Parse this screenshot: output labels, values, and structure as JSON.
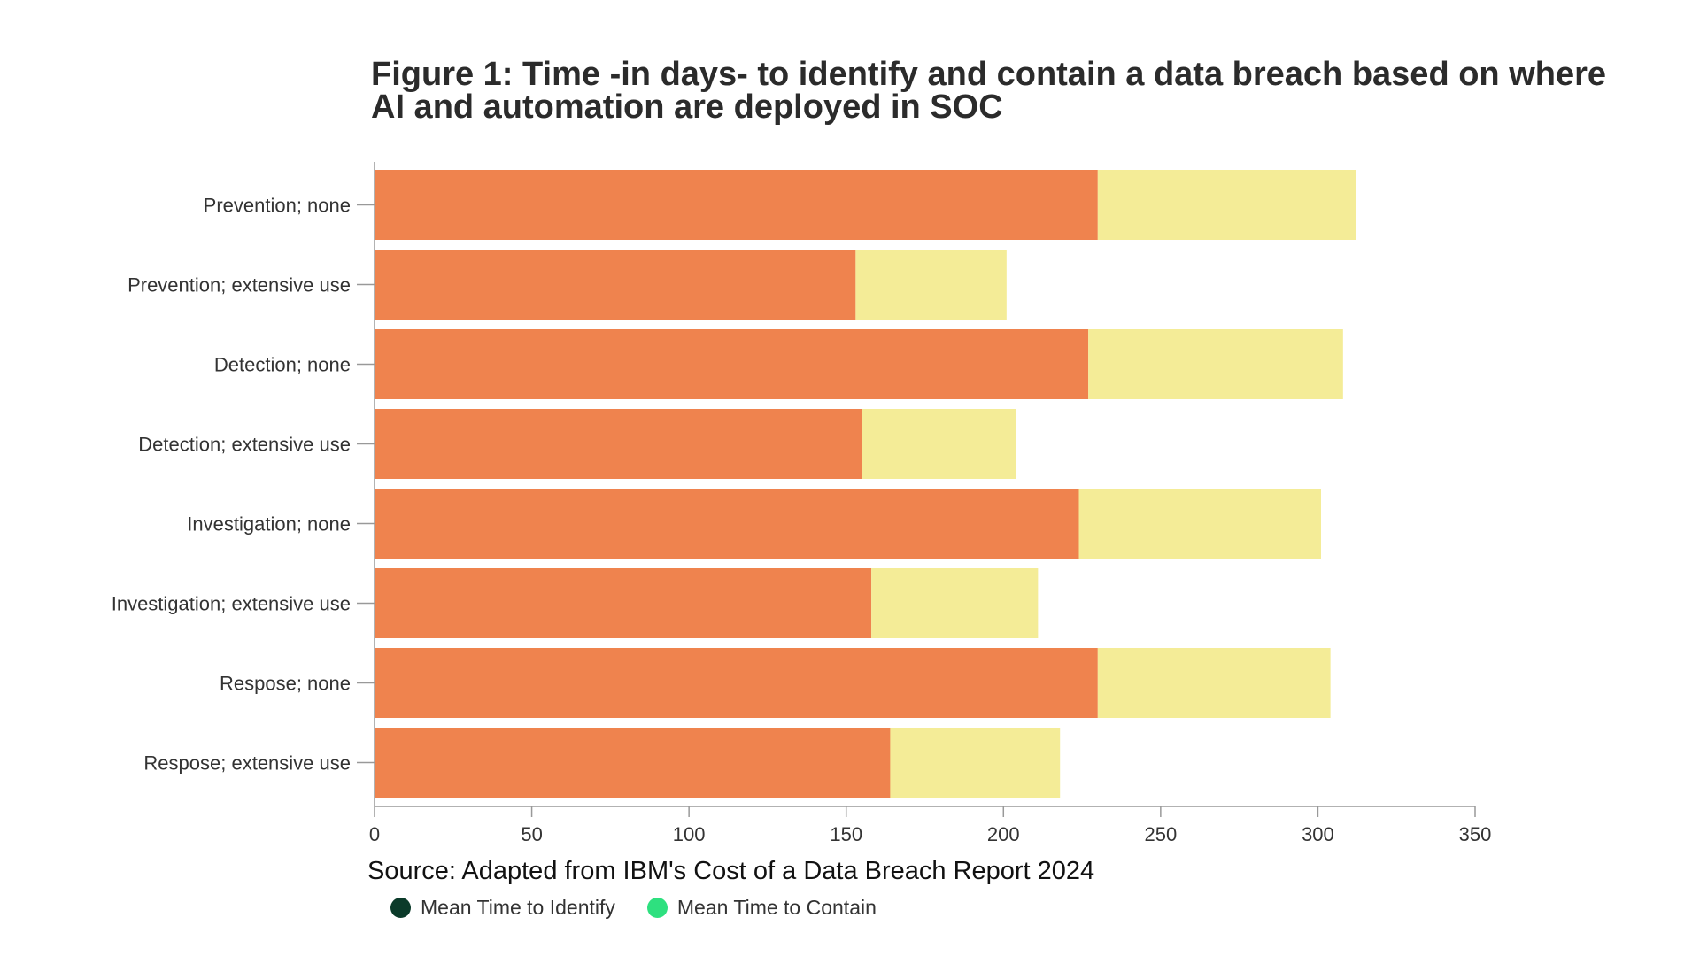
{
  "chart_data": {
    "type": "bar",
    "orientation": "horizontal",
    "stacked": true,
    "title": "Figure 1: Time -in days- to identify and contain a data breach based on where AI and automation are deployed in SOC",
    "categories": [
      "Prevention; none",
      "Prevention; extensive use",
      "Detection; none",
      "Detection; extensive use",
      "Investigation; none",
      "Investigation; extensive use",
      "Respose; none",
      "Respose; extensive use"
    ],
    "series": [
      {
        "name": "Mean Time to Identify",
        "bar_color": "#ef834e",
        "legend_color": "#0b3b2a",
        "values": [
          230,
          153,
          227,
          155,
          224,
          158,
          230,
          164
        ]
      },
      {
        "name": "Mean Time to Contain",
        "bar_color": "#f4ec97",
        "legend_color": "#2ee07f",
        "values": [
          82,
          48,
          81,
          49,
          77,
          53,
          74,
          54
        ]
      }
    ],
    "xlim": [
      0,
      350
    ],
    "xticks": [
      0,
      50,
      100,
      150,
      200,
      250,
      300,
      350
    ],
    "xlabel": "",
    "ylabel": "",
    "grid": false,
    "legend_position": "bottom-left"
  },
  "source": "Source: Adapted from IBM's Cost of a Data Breach Report 2024"
}
